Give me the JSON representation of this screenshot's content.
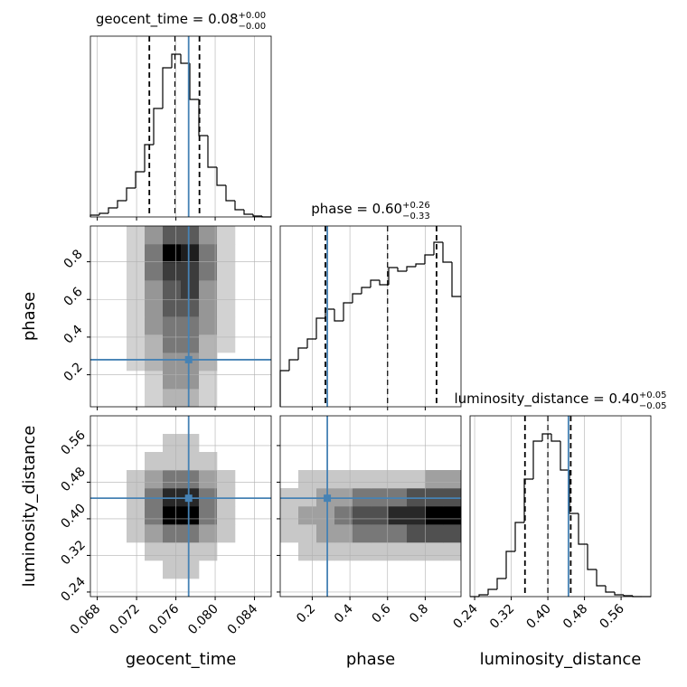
{
  "chart_data": {
    "type": "corner",
    "truth_color": "#4682b4",
    "grid": true,
    "params": [
      {
        "name": "geocent_time",
        "lim": [
          0.0673,
          0.0857
        ],
        "ticks": [
          0.068,
          0.072,
          0.076,
          {
            "value": 0.08,
            "label": "0.080"
          },
          0.084
        ],
        "truth": 0.0773
      },
      {
        "name": "phase",
        "lim": [
          0.03,
          0.99
        ],
        "ticks": [
          0.2,
          0.4,
          0.6,
          0.8
        ],
        "truth": 0.28
      },
      {
        "name": "luminosity_distance",
        "lim": [
          0.23,
          0.625
        ],
        "ticks": [
          0.24,
          0.32,
          {
            "value": 0.4,
            "label": "0.40"
          },
          0.48,
          0.56
        ],
        "truth": 0.445
      }
    ],
    "histograms": [
      {
        "title": "geocent_time = 0.08",
        "title_sup": "+0.00",
        "title_sub": "−0.00",
        "ylim": [
          0,
          200
        ],
        "bins": [
          0.0673,
          0.06822,
          0.06914,
          0.07006,
          0.07098,
          0.0719,
          0.07282,
          0.07374,
          0.07466,
          0.07558,
          0.0765,
          0.07742,
          0.07834,
          0.07926,
          0.08018,
          0.0811,
          0.08202,
          0.08294,
          0.08386,
          0.08478,
          0.0857
        ],
        "counts": [
          2,
          4,
          10,
          18,
          32,
          50,
          80,
          120,
          165,
          180,
          170,
          130,
          90,
          55,
          35,
          18,
          8,
          3,
          1,
          0
        ],
        "quantiles": [
          0.0733,
          0.0759,
          0.0784
        ]
      },
      {
        "title": "phase = 0.60",
        "title_sup": "+0.26",
        "title_sub": "−0.33",
        "ylim": [
          0,
          200
        ],
        "bins": [
          0.03,
          0.078,
          0.126,
          0.174,
          0.222,
          0.27,
          0.318,
          0.366,
          0.414,
          0.462,
          0.51,
          0.558,
          0.606,
          0.654,
          0.702,
          0.75,
          0.798,
          0.846,
          0.894,
          0.942,
          0.99
        ],
        "counts": [
          40,
          52,
          65,
          75,
          98,
          108,
          95,
          115,
          125,
          132,
          140,
          135,
          154,
          150,
          155,
          158,
          168,
          182,
          160,
          122
        ],
        "quantiles": [
          0.27,
          0.6,
          0.86
        ]
      },
      {
        "title": "luminosity_distance = 0.40",
        "title_sup": "+0.05",
        "title_sub": "−0.05",
        "ylim": [
          0,
          200
        ],
        "bins": [
          0.23,
          0.24975,
          0.2695,
          0.28925,
          0.309,
          0.32875,
          0.3485,
          0.36825,
          0.388,
          0.40775,
          0.4275,
          0.44725,
          0.467,
          0.48675,
          0.5065,
          0.52625,
          0.546,
          0.56575,
          0.5855,
          0.60525,
          0.625
        ],
        "counts": [
          0,
          2,
          8,
          20,
          50,
          82,
          130,
          172,
          180,
          172,
          140,
          92,
          58,
          30,
          12,
          5,
          2,
          1,
          0,
          0
        ],
        "quantiles": [
          0.35,
          0.4,
          0.45
        ]
      }
    ],
    "densities": [
      {
        "x_bins": [
          0.0673,
          0.06914,
          0.07098,
          0.07282,
          0.07466,
          0.0765,
          0.07834,
          0.08018,
          0.08202,
          0.08386,
          0.0857
        ],
        "y_bins": [
          0.03,
          0.126,
          0.222,
          0.318,
          0.414,
          0.51,
          0.606,
          0.702,
          0.798,
          0.894,
          0.99
        ],
        "counts": [
          [
            0,
            0,
            0,
            1,
            2,
            2,
            1,
            0,
            0,
            0
          ],
          [
            0,
            0,
            0,
            1,
            3,
            3,
            1,
            0,
            0,
            0
          ],
          [
            0,
            0,
            1,
            2,
            3,
            3,
            2,
            0,
            0,
            0
          ],
          [
            0,
            0,
            1,
            2,
            4,
            4,
            2,
            1,
            0,
            0
          ],
          [
            0,
            0,
            1,
            3,
            4,
            4,
            3,
            1,
            0,
            0
          ],
          [
            0,
            0,
            1,
            3,
            5,
            5,
            3,
            1,
            0,
            0
          ],
          [
            0,
            0,
            1,
            3,
            5,
            6,
            3,
            1,
            0,
            0
          ],
          [
            0,
            0,
            1,
            4,
            6,
            6,
            4,
            1,
            0,
            0
          ],
          [
            0,
            0,
            1,
            4,
            8,
            7,
            4,
            1,
            0,
            0
          ],
          [
            0,
            0,
            1,
            3,
            5,
            5,
            3,
            1,
            0,
            0
          ]
        ]
      },
      {
        "x_bins": [
          0.0673,
          0.06914,
          0.07098,
          0.07282,
          0.07466,
          0.0765,
          0.07834,
          0.08018,
          0.08202,
          0.08386,
          0.0857
        ],
        "y_bins": [
          0.23,
          0.2695,
          0.309,
          0.3485,
          0.388,
          0.4275,
          0.467,
          0.5065,
          0.546,
          0.5855,
          0.625
        ],
        "counts": [
          [
            0,
            0,
            0,
            0,
            0,
            0,
            0,
            0,
            0,
            0
          ],
          [
            0,
            0,
            0,
            0,
            1,
            1,
            0,
            0,
            0,
            0
          ],
          [
            0,
            0,
            0,
            1,
            1,
            1,
            1,
            0,
            0,
            0
          ],
          [
            0,
            0,
            1,
            2,
            3,
            3,
            2,
            1,
            0,
            0
          ],
          [
            0,
            0,
            1,
            3,
            6,
            6,
            3,
            1,
            0,
            0
          ],
          [
            0,
            0,
            1,
            3,
            5,
            5,
            3,
            1,
            0,
            0
          ],
          [
            0,
            0,
            1,
            2,
            3,
            3,
            2,
            1,
            0,
            0
          ],
          [
            0,
            0,
            0,
            1,
            1,
            1,
            1,
            0,
            0,
            0
          ],
          [
            0,
            0,
            0,
            0,
            1,
            1,
            0,
            0,
            0,
            0
          ],
          [
            0,
            0,
            0,
            0,
            0,
            0,
            0,
            0,
            0,
            0
          ]
        ]
      },
      {
        "x_bins": [
          0.03,
          0.126,
          0.222,
          0.318,
          0.414,
          0.51,
          0.606,
          0.702,
          0.798,
          0.894,
          0.99
        ],
        "y_bins": [
          0.23,
          0.2695,
          0.309,
          0.3485,
          0.388,
          0.4275,
          0.467,
          0.5065,
          0.546,
          0.5855,
          0.625
        ],
        "counts": [
          [
            0,
            0,
            0,
            0,
            0,
            0,
            0,
            0,
            0,
            0
          ],
          [
            0,
            0,
            0,
            0,
            0,
            0,
            0,
            0,
            0,
            0
          ],
          [
            0,
            1,
            1,
            1,
            1,
            1,
            1,
            1,
            1,
            1
          ],
          [
            1,
            1,
            2,
            2,
            3,
            3,
            3,
            4,
            4,
            4
          ],
          [
            1,
            2,
            2,
            3,
            4,
            4,
            5,
            5,
            6,
            6
          ],
          [
            1,
            1,
            2,
            2,
            3,
            3,
            3,
            4,
            4,
            4
          ],
          [
            0,
            1,
            1,
            1,
            1,
            1,
            1,
            1,
            2,
            2
          ],
          [
            0,
            0,
            0,
            0,
            0,
            0,
            0,
            0,
            0,
            0
          ],
          [
            0,
            0,
            0,
            0,
            0,
            0,
            0,
            0,
            0,
            0
          ],
          [
            0,
            0,
            0,
            0,
            0,
            0,
            0,
            0,
            0,
            0
          ]
        ]
      }
    ]
  }
}
